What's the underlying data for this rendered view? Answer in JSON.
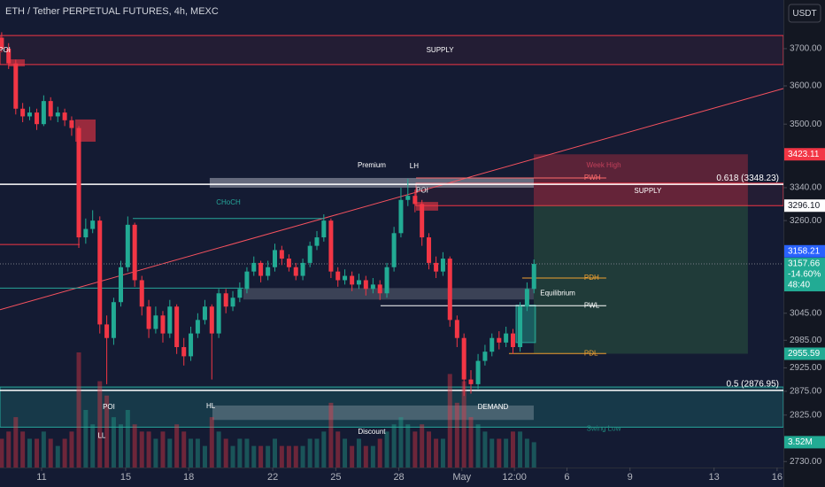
{
  "chart_data": {
    "type": "candlestick",
    "title": "ETH / Tether PERPETUAL FUTURES, 4h, MEXC",
    "currency": "USDT",
    "log_scale": true,
    "up_color": "#22ab94",
    "down_color": "#f23645",
    "background": "#141b33",
    "x": [
      9.1,
      9.43,
      9.77,
      10.1,
      10.43,
      10.77,
      11.1,
      11.43,
      11.77,
      12.1,
      12.43,
      12.77,
      13.1,
      13.43,
      13.77,
      14.1,
      14.43,
      14.77,
      15.1,
      15.43,
      15.77,
      16.1,
      16.43,
      16.77,
      17.1,
      17.43,
      17.77,
      18.1,
      18.43,
      18.77,
      19.1,
      19.43,
      19.77,
      20.1,
      20.43,
      20.77,
      21.1,
      21.43,
      21.77,
      22.1,
      22.43,
      22.77,
      23.1,
      23.43,
      23.77,
      24.1,
      24.43,
      24.77,
      25.1,
      25.43,
      25.77,
      26.1,
      26.43,
      26.77,
      27.1,
      27.43,
      27.77,
      28.1,
      28.43,
      28.77,
      29.1,
      29.43,
      29.77,
      30.1,
      30.43,
      30.77,
      31.1,
      31.43,
      31.77,
      32.1,
      32.43,
      32.77,
      33.1,
      33.43,
      33.77,
      34.1,
      34.43
    ],
    "open": [
      3730,
      3700,
      3660,
      3540,
      3520,
      3530,
      3500,
      3560,
      3520,
      3530,
      3510,
      3490,
      3220,
      3240,
      3260,
      3020,
      2990,
      3070,
      3150,
      3250,
      3120,
      3060,
      3010,
      3040,
      3000,
      3060,
      2970,
      2950,
      3000,
      3030,
      3060,
      3000,
      3090,
      3060,
      3080,
      3100,
      3140,
      3160,
      3130,
      3150,
      3190,
      3170,
      3150,
      3130,
      3160,
      3200,
      3220,
      3260,
      3140,
      3120,
      3130,
      3110,
      3120,
      3100,
      3110,
      3090,
      3150,
      3230,
      3310,
      3320,
      3300,
      3220,
      3160,
      3140,
      3170,
      3030,
      2990,
      2900,
      2890,
      2940,
      2960,
      2990,
      2980,
      3000,
      2970,
      3060,
      3100
    ],
    "high": [
      3745,
      3715,
      3670,
      3555,
      3545,
      3540,
      3575,
      3570,
      3545,
      3540,
      3520,
      3495,
      3265,
      3285,
      3270,
      3040,
      3080,
      3165,
      3270,
      3255,
      3130,
      3075,
      3060,
      3050,
      3075,
      3065,
      2990,
      3015,
      3045,
      3075,
      3065,
      3100,
      3100,
      3095,
      3115,
      3150,
      3175,
      3165,
      3165,
      3205,
      3200,
      3180,
      3160,
      3170,
      3210,
      3235,
      3275,
      3265,
      3150,
      3145,
      3140,
      3135,
      3130,
      3125,
      3120,
      3160,
      3245,
      3340,
      3362,
      3335,
      3310,
      3230,
      3175,
      3185,
      3175,
      3040,
      3000,
      2920,
      2955,
      2975,
      3000,
      3005,
      3015,
      3010,
      3070,
      3115,
      3168
    ],
    "low": [
      3690,
      3645,
      3525,
      3505,
      3510,
      3485,
      3495,
      3510,
      3505,
      3495,
      3470,
      3195,
      3205,
      3230,
      3000,
      2890,
      2975,
      3060,
      3140,
      3105,
      3040,
      2990,
      3000,
      2980,
      2990,
      2955,
      2930,
      2940,
      2990,
      3020,
      2900,
      2990,
      3045,
      3050,
      3070,
      3090,
      3130,
      3115,
      3120,
      3140,
      3155,
      3140,
      3120,
      3120,
      3150,
      3190,
      3210,
      3125,
      3105,
      3110,
      3095,
      3100,
      3085,
      3090,
      3075,
      3080,
      3140,
      3220,
      3295,
      3280,
      3200,
      3145,
      3125,
      3130,
      3015,
      2970,
      2865,
      2870,
      2880,
      2930,
      2950,
      2965,
      2970,
      2955,
      2960,
      3050,
      3090
    ],
    "close": [
      3700,
      3660,
      3540,
      3520,
      3530,
      3500,
      3560,
      3520,
      3530,
      3510,
      3490,
      3220,
      3240,
      3260,
      3020,
      2990,
      3070,
      3150,
      3250,
      3120,
      3060,
      3010,
      3040,
      3000,
      3060,
      2970,
      2950,
      3000,
      3030,
      3060,
      3000,
      3090,
      3060,
      3080,
      3100,
      3140,
      3160,
      3130,
      3150,
      3190,
      3170,
      3150,
      3130,
      3160,
      3200,
      3220,
      3260,
      3140,
      3120,
      3130,
      3110,
      3120,
      3100,
      3110,
      3090,
      3150,
      3230,
      3310,
      3320,
      3300,
      3220,
      3160,
      3140,
      3170,
      3030,
      2990,
      2900,
      2890,
      2940,
      2960,
      2990,
      2980,
      3000,
      2970,
      3060,
      3100,
      3157.66
    ],
    "volume": [
      4,
      5,
      7,
      5,
      4,
      4,
      5,
      4,
      3,
      4,
      5,
      16,
      8,
      6,
      12,
      10,
      7,
      6,
      8,
      6,
      5,
      5,
      4,
      5,
      4,
      6,
      5,
      4,
      4,
      3,
      7,
      5,
      4,
      3,
      4,
      4,
      3,
      3,
      3,
      4,
      3,
      3,
      3,
      3,
      4,
      4,
      5,
      9,
      5,
      4,
      3,
      4,
      3,
      3,
      4,
      5,
      6,
      7,
      6,
      5,
      6,
      5,
      4,
      4,
      13,
      9,
      12,
      7,
      6,
      5,
      4,
      4,
      4,
      5,
      5,
      4,
      3.52
    ],
    "volume_value_label": "3.52M",
    "xlim": [
      9.02,
      46.3
    ],
    "xticks": [
      11,
      15,
      18,
      22,
      25,
      28,
      {
        "value": 31,
        "label": "May"
      },
      {
        "value": 33.5,
        "label": "12:00"
      },
      {
        "value": 36,
        "label": "6"
      },
      {
        "value": 39,
        "label": "9"
      },
      {
        "value": 43,
        "label": "13"
      },
      {
        "value": 46,
        "label": "16"
      }
    ],
    "ylim": [
      2718,
      3835
    ],
    "yticks": [
      {
        "value": 3700,
        "label": "3700.00"
      },
      {
        "value": 3600,
        "label": "3600.00"
      },
      {
        "value": 3500,
        "label": "3500.00"
      },
      {
        "value": 3340,
        "label": "3340.00"
      },
      {
        "value": 3260,
        "label": "3260.00"
      },
      {
        "value": 3045,
        "label": "3045.00"
      },
      {
        "value": 2985,
        "label": "2985.00"
      },
      {
        "value": 2925,
        "label": "2925.00"
      },
      {
        "value": 2875,
        "label": "2875.00"
      },
      {
        "value": 2825,
        "label": "2825.00"
      },
      {
        "value": 2730,
        "label": "2730.00"
      }
    ],
    "price_labels": [
      {
        "value": 3423.11,
        "label": "3423.11",
        "bg": "#f23645",
        "fg": "#ffffff"
      },
      {
        "value": 3296.1,
        "label": "3296.10",
        "bg": "#ffffff",
        "fg": "#131722"
      },
      {
        "value": 3158.21,
        "label": "3158.21",
        "bg": "#2962ff",
        "fg": "#ffffff"
      },
      {
        "value": 2955.59,
        "label": "2955.59",
        "bg": "#22ab94",
        "fg": "#ffffff"
      }
    ],
    "last_price_box": {
      "change": {
        "value": -14.6,
        "label": "-14.60%"
      },
      "countdown": "48:40",
      "bg": "#22ab94"
    },
    "zones": [
      {
        "price": [
          3657,
          3736
        ],
        "x": [
          9.02,
          46.3
        ],
        "fill": "rgba(242,54,69,0.07)",
        "stroke": "#f23645"
      },
      {
        "price": [
          3296.1,
          3351
        ],
        "x": [
          28.82,
          46.3
        ],
        "fill": "rgba(242,54,69,0.07)",
        "stroke": "#f23645"
      },
      {
        "price": [
          3340,
          3364
        ],
        "x": [
          19.0,
          34.42
        ],
        "fill": "rgba(200,205,215,0.45)",
        "stroke": "none"
      },
      {
        "price": [
          3076,
          3102
        ],
        "x": [
          20.6,
          34.42
        ],
        "fill": "rgba(200,205,215,0.22)",
        "stroke": "none"
      },
      {
        "price": [
          2800,
          2884
        ],
        "x": [
          9.02,
          46.3
        ],
        "fill": "rgba(38,166,154,0.22)",
        "stroke": "#26a69a"
      },
      {
        "price": [
          2815,
          2845
        ],
        "x": [
          19.13,
          34.42
        ],
        "fill": "rgba(200,205,215,0.28)",
        "stroke": "none"
      },
      {
        "price": [
          3455,
          3512
        ],
        "x": [
          12.6,
          13.57
        ],
        "fill": "rgba(242,54,69,0.6)",
        "stroke": "none"
      },
      {
        "price": [
          3652,
          3671
        ],
        "x": [
          9.44,
          10.2
        ],
        "fill": "rgba(242,54,69,0.6)",
        "stroke": "none"
      },
      {
        "price": [
          3284,
          3305
        ],
        "x": [
          28.82,
          29.87
        ],
        "fill": "rgba(242,54,69,0.6)",
        "stroke": "none"
      },
      {
        "price": [
          3296.1,
          3423.11
        ],
        "x": [
          34.42,
          44.61
        ],
        "fill": "rgba(242,54,69,0.32)",
        "stroke": "none"
      },
      {
        "price": [
          2955.59,
          3296.1
        ],
        "x": [
          34.42,
          44.61
        ],
        "fill": "rgba(76,175,80,0.22)",
        "stroke": "none"
      },
      {
        "price": [
          2980,
          3063
        ],
        "x": [
          33.58,
          34.5
        ],
        "fill": "rgba(34,171,148,0.45)",
        "stroke": "#26a69a"
      }
    ],
    "lines": [
      {
        "from": [
          9.02,
          3053
        ],
        "to": [
          46.3,
          3593
        ],
        "color": "#f7525f"
      },
      {
        "from": [
          15.34,
          3265
        ],
        "to": [
          24.4,
          3265
        ],
        "color": "#26a69a"
      },
      {
        "from": [
          9.02,
          3203
        ],
        "to": [
          12.81,
          3203
        ],
        "color": "#f23645"
      },
      {
        "from": [
          9.02,
          3102
        ],
        "to": [
          20.6,
          3102
        ],
        "color": "#26a69a"
      }
    ],
    "levels": [
      {
        "label": "PWH",
        "price": 3364,
        "x": [
          28.82,
          37.87
        ],
        "color": "#ff6b6b"
      },
      {
        "label": "PDH",
        "price": 3125,
        "x": [
          33.87,
          37.87
        ],
        "color": "#f0a030"
      },
      {
        "label": "PWL",
        "price": 3062,
        "x": [
          27.13,
          37.87
        ],
        "color": "#ffffff"
      },
      {
        "label": "PDL",
        "price": 2956,
        "x": [
          33.24,
          37.87
        ],
        "color": "#f0a030"
      }
    ],
    "fib_levels": [
      {
        "label": "0.618 (3348.23)",
        "price": 3348.23
      },
      {
        "label": "0.5 (2876.95)",
        "price": 2876.95
      }
    ],
    "texts": [
      {
        "label": "POI",
        "at": [
          9.23,
          3695
        ],
        "color": "#ffffff"
      },
      {
        "label": "SUPPLY",
        "at": [
          29.96,
          3695
        ],
        "color": "#ffffff"
      },
      {
        "label": "Premium",
        "at": [
          26.71,
          3395
        ],
        "color": "#ffffff"
      },
      {
        "label": "LH",
        "at": [
          28.73,
          3393
        ],
        "color": "#ffffff"
      },
      {
        "label": "CHoCH",
        "at": [
          19.89,
          3303
        ],
        "color": "#26a69a"
      },
      {
        "label": "POI",
        "at": [
          29.11,
          3333
        ],
        "color": "#ffffff"
      },
      {
        "label": "Week High",
        "at": [
          37.75,
          3395
        ],
        "color": "#c2405a"
      },
      {
        "label": "SUPPLY",
        "at": [
          39.85,
          3331
        ],
        "color": "#ffffff"
      },
      {
        "label": "Equilibrium",
        "at": [
          35.56,
          3090
        ],
        "color": "#ffffff"
      },
      {
        "label": "POI",
        "at": [
          14.2,
          2841
        ],
        "color": "#ffffff"
      },
      {
        "label": "HL",
        "at": [
          19.05,
          2843
        ],
        "color": "#ffffff"
      },
      {
        "label": "DEMAND",
        "at": [
          32.48,
          2841
        ],
        "color": "#ffffff"
      },
      {
        "label": "LL",
        "at": [
          13.86,
          2782
        ],
        "color": "#ffffff"
      },
      {
        "label": "Discount",
        "at": [
          26.71,
          2790
        ],
        "color": "#ffffff"
      },
      {
        "label": "Swing Low",
        "at": [
          37.75,
          2796
        ],
        "color": "#1f8a7e"
      }
    ]
  }
}
